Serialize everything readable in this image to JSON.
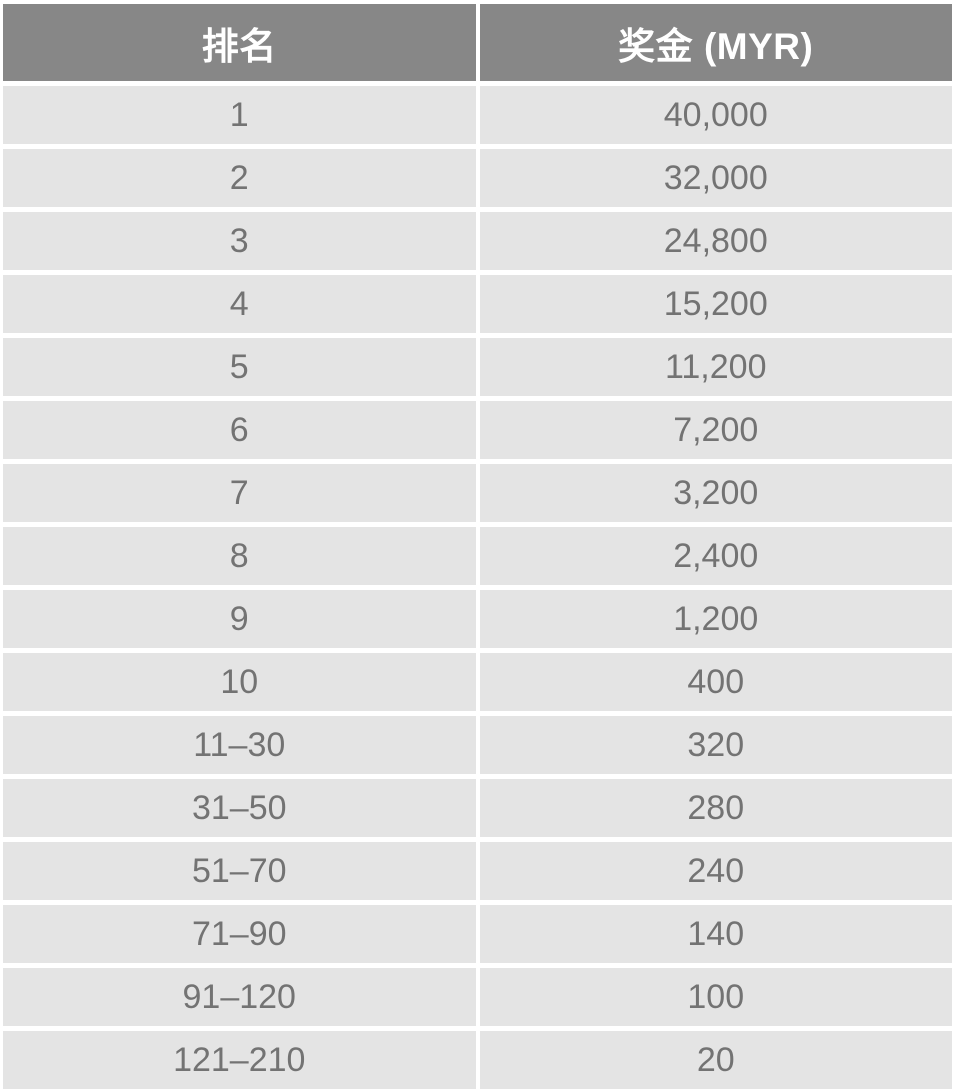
{
  "table": {
    "headers": [
      {
        "label": "排名"
      },
      {
        "label": "奖金 (MYR)"
      }
    ],
    "rows": [
      {
        "rank": "1",
        "prize": "40,000"
      },
      {
        "rank": "2",
        "prize": "32,000"
      },
      {
        "rank": "3",
        "prize": "24,800"
      },
      {
        "rank": "4",
        "prize": "15,200"
      },
      {
        "rank": "5",
        "prize": "11,200"
      },
      {
        "rank": "6",
        "prize": "7,200"
      },
      {
        "rank": "7",
        "prize": "3,200"
      },
      {
        "rank": "8",
        "prize": "2,400"
      },
      {
        "rank": "9",
        "prize": "1,200"
      },
      {
        "rank": "10",
        "prize": "400"
      },
      {
        "rank": "11–30",
        "prize": "320"
      },
      {
        "rank": "31–50",
        "prize": "280"
      },
      {
        "rank": "51–70",
        "prize": "240"
      },
      {
        "rank": "71–90",
        "prize": "140"
      },
      {
        "rank": "91–120",
        "prize": "100"
      },
      {
        "rank": "121–210",
        "prize": "20"
      }
    ]
  },
  "colors": {
    "header_bg": "#878787",
    "header_text": "#ffffff",
    "row_bg": "#e4e4e4",
    "row_text": "#737373",
    "gap": "#ffffff"
  },
  "chart_data": {
    "type": "table",
    "columns": [
      "排名",
      "奖金 (MYR)"
    ],
    "rows": [
      [
        "1",
        "40,000"
      ],
      [
        "2",
        "32,000"
      ],
      [
        "3",
        "24,800"
      ],
      [
        "4",
        "15,200"
      ],
      [
        "5",
        "11,200"
      ],
      [
        "6",
        "7,200"
      ],
      [
        "7",
        "3,200"
      ],
      [
        "8",
        "2,400"
      ],
      [
        "9",
        "1,200"
      ],
      [
        "10",
        "400"
      ],
      [
        "11–30",
        "320"
      ],
      [
        "31–50",
        "280"
      ],
      [
        "51–70",
        "240"
      ],
      [
        "71–90",
        "140"
      ],
      [
        "91–120",
        "100"
      ],
      [
        "121–210",
        "20"
      ]
    ]
  }
}
